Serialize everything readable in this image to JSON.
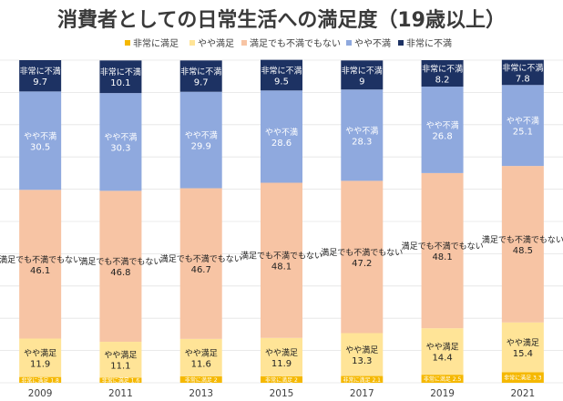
{
  "chart_data": {
    "type": "bar",
    "stacked": true,
    "percent": true,
    "title": "消費者としての日常生活への満足度（19歳以上）",
    "xlabel": "",
    "ylabel": "",
    "ylim": [
      0,
      100
    ],
    "legend_position": "top",
    "grid": true,
    "categories": [
      "2009",
      "2011",
      "2013",
      "2015",
      "2017",
      "2019",
      "2021"
    ],
    "series": [
      {
        "name": "非常に満足",
        "color": "#f5b800",
        "text_color": "#ffffff",
        "values": [
          1.8,
          1.6,
          2,
          2,
          2.1,
          2.5,
          3.3
        ]
      },
      {
        "name": "やや満足",
        "color": "#ffe497",
        "text_color": "#222222",
        "values": [
          11.9,
          11.1,
          11.6,
          11.9,
          13.3,
          14.4,
          15.4
        ]
      },
      {
        "name": "満足でも不満でもない",
        "color": "#f7c4a4",
        "text_color": "#222222",
        "values": [
          46.1,
          46.8,
          46.7,
          48.1,
          47.2,
          48.1,
          48.5
        ]
      },
      {
        "name": "やや不満",
        "color": "#8fa9de",
        "text_color": "#ffffff",
        "values": [
          30.5,
          30.3,
          29.9,
          28.6,
          28.3,
          26.8,
          25.1
        ]
      },
      {
        "name": "非常に不満",
        "color": "#1d3263",
        "text_color": "#ffffff",
        "values": [
          9.7,
          10.1,
          9.7,
          9.5,
          9,
          8.2,
          7.8
        ]
      }
    ]
  }
}
